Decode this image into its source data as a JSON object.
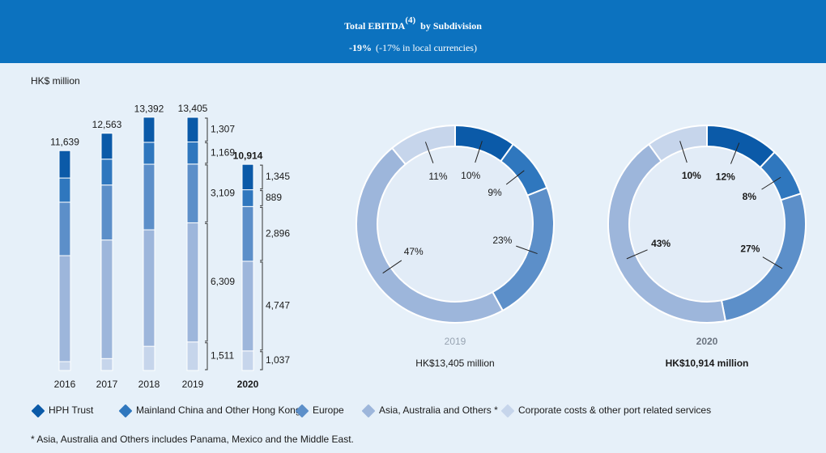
{
  "header": {
    "title": "Total EBITDA",
    "title_note": "(4)",
    "title_suffix": "by Subdivision",
    "change": "-19%",
    "change_note": "(-17% in local currencies)"
  },
  "unit_label": "HK$ million",
  "footnote": "* Asia, Australia and Others includes Panama, Mexico and the Middle East.",
  "chart_data": [
    {
      "type": "stacked-bar",
      "categories": [
        "2016",
        "2017",
        "2018",
        "2019",
        "2020"
      ],
      "totals": [
        11639,
        12563,
        13392,
        13405,
        10914
      ],
      "total_labels": [
        "11,639",
        "12,563",
        "13,392",
        "13,405",
        "10,914"
      ],
      "series": [
        {
          "name": "HPH Trust",
          "color": "#0b5aa8",
          "values": [
            1450,
            1370,
            1330,
            1307,
            1345
          ],
          "value_labels": [
            null,
            null,
            null,
            "1,307",
            "1,345"
          ]
        },
        {
          "name": "Mainland China and Other Hong Kong",
          "color": "#2f77be",
          "values": [
            1280,
            1370,
            1160,
            1169,
            889
          ],
          "value_labels": [
            null,
            null,
            null,
            "1,169",
            "889"
          ]
        },
        {
          "name": "Europe",
          "color": "#5c8fc9",
          "values": [
            2830,
            2910,
            3470,
            3109,
            2896
          ],
          "value_labels": [
            null,
            null,
            null,
            "3,109",
            "2,896"
          ]
        },
        {
          "name": "Asia, Australia and Others *",
          "color": "#9db6db",
          "values": [
            5610,
            6280,
            6170,
            6309,
            4747
          ],
          "value_labels": [
            null,
            null,
            null,
            "6,309",
            "4,747"
          ]
        },
        {
          "name": "Corporate costs & other port related services",
          "color": "#c6d5eb",
          "values": [
            470,
            630,
            1280,
            1511,
            1037
          ],
          "value_labels": [
            null,
            null,
            null,
            "1,511",
            "1,037"
          ]
        }
      ]
    },
    {
      "type": "donut",
      "title": "2019",
      "subtitle": "HK$13,405 million",
      "emphasis": false,
      "colors": [
        "#0b5aa8",
        "#2f77be",
        "#5c8fc9",
        "#9db6db",
        "#c6d5eb"
      ],
      "values": [
        10,
        9,
        23,
        47,
        11
      ],
      "value_labels": [
        "10%",
        "9%",
        "23%",
        "47%",
        "11%"
      ]
    },
    {
      "type": "donut",
      "title": "2020",
      "subtitle": "HK$10,914 million",
      "emphasis": true,
      "colors": [
        "#0b5aa8",
        "#2f77be",
        "#5c8fc9",
        "#9db6db",
        "#c6d5eb"
      ],
      "values": [
        12,
        8,
        27,
        43,
        10
      ],
      "value_labels": [
        "12%",
        "8%",
        "27%",
        "43%",
        "10%"
      ]
    }
  ]
}
